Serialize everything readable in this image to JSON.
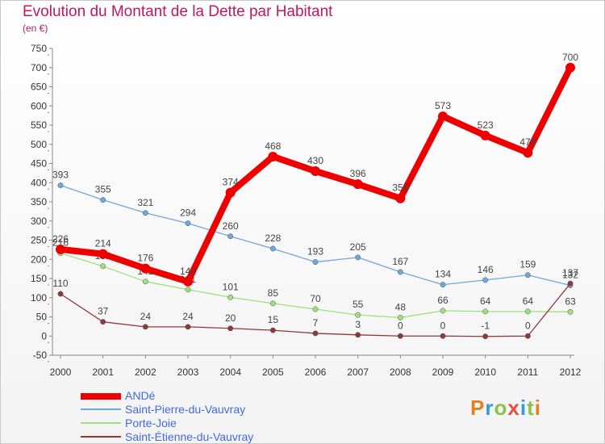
{
  "title": "Evolution du Montant de la Dette par Habitant",
  "subtitle": "(en €)",
  "logo": {
    "text": "Proxiti",
    "colors": [
      "#e67e22",
      "#3498db",
      "#8bc34a",
      "#e74c3c",
      "#3498db",
      "#8bc34a",
      "#e67e22"
    ]
  },
  "chart_data": {
    "type": "line",
    "title": "Evolution du Montant de la Dette par Habitant",
    "ylabel": "(en €)",
    "categories": [
      "2000",
      "2001",
      "2002",
      "2003",
      "2004",
      "2005",
      "2006",
      "2007",
      "2008",
      "2009",
      "2010",
      "2011",
      "2012"
    ],
    "ylim": [
      -50,
      750
    ],
    "yticks": [
      -50,
      0,
      50,
      100,
      150,
      200,
      250,
      300,
      350,
      400,
      450,
      500,
      550,
      600,
      650,
      700,
      750
    ],
    "grid": false,
    "legend_position": "bottom-left",
    "series": [
      {
        "name": "Saint-Pierre-du-Vauvray",
        "color": "#6fa8dc",
        "values": [
          393,
          355,
          321,
          294,
          260,
          228,
          193,
          205,
          167,
          134,
          146,
          159,
          132
        ],
        "labels": [
          "393",
          "355",
          "321",
          "294",
          "260",
          "228",
          "193",
          "205",
          "167",
          "134",
          "146",
          "159",
          "132"
        ]
      },
      {
        "name": "Porte-Joie",
        "color": "#9ee07e",
        "values": [
          216,
          182,
          142,
          121,
          101,
          85,
          70,
          55,
          48,
          66,
          64,
          64,
          63
        ],
        "labels": [
          "216",
          "182",
          "142",
          "121",
          "101",
          "85",
          "70",
          "55",
          "48",
          "66",
          "64",
          "64",
          "63"
        ]
      },
      {
        "name": "Saint-Étienne-du-Vauvray",
        "color": "#8b3a3a",
        "values": [
          110,
          37,
          24,
          24,
          20,
          15,
          7,
          3,
          0,
          0,
          -1,
          0,
          137
        ],
        "labels": [
          "110",
          "37",
          "24",
          "24",
          "20",
          "15",
          "7",
          "3",
          "0",
          "0",
          "-1",
          "0",
          "137"
        ]
      },
      {
        "name": "ANDé",
        "color": "#ee0000",
        "values": [
          226,
          214,
          176,
          142,
          374,
          468,
          430,
          396,
          359,
          573,
          523,
          478,
          700
        ],
        "labels": [
          "226",
          "214",
          "176",
          "142",
          "374",
          "468",
          "430",
          "396",
          "359",
          "573",
          "523",
          "478",
          "700"
        ]
      }
    ]
  },
  "legend": [
    {
      "label": "ANDé",
      "color": "#ee0000"
    },
    {
      "label": "Saint-Pierre-du-Vauvray",
      "color": "#6fa8dc"
    },
    {
      "label": "Porte-Joie",
      "color": "#9ee07e"
    },
    {
      "label": "Saint-Étienne-du-Vauvray",
      "color": "#8b3a3a"
    }
  ]
}
